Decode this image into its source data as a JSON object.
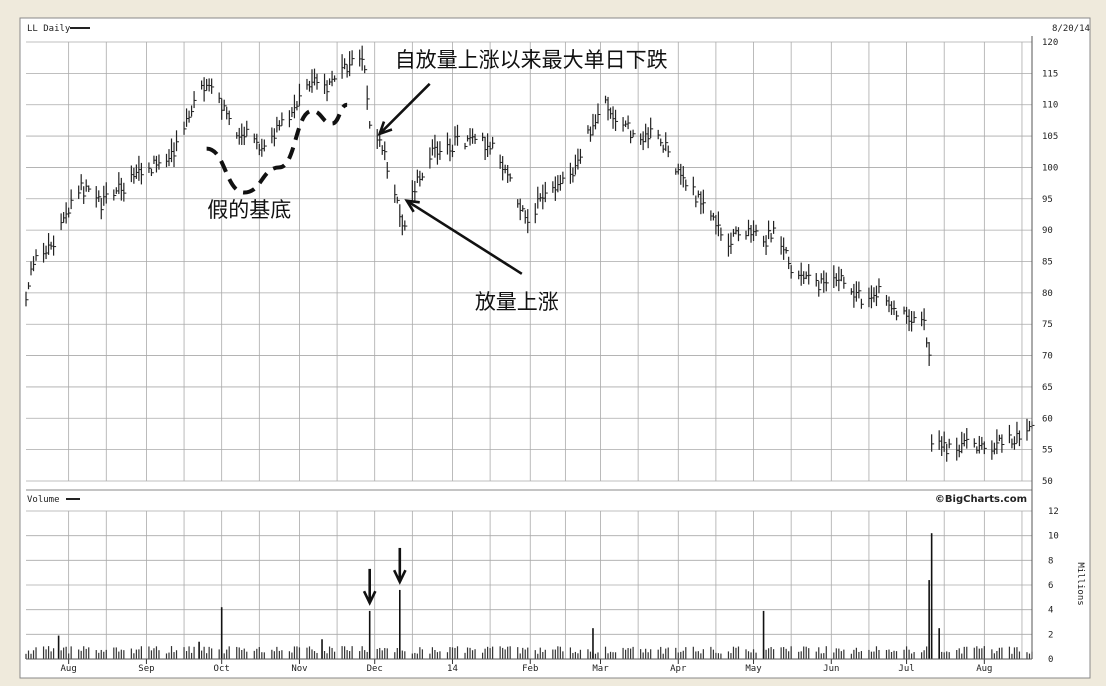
{
  "chart_data": [
    {
      "type": "bar",
      "subtype": "ohlc",
      "title": "LL Daily",
      "date_label": "8/20/14",
      "ylim": [
        50,
        120
      ],
      "y_ticks": [
        120,
        115,
        110,
        105,
        100,
        95,
        90,
        85,
        80,
        75,
        70,
        65,
        60,
        55,
        50
      ],
      "x_ticks": [
        "Aug",
        "Sep",
        "Oct",
        "Nov",
        "Dec",
        "14",
        "Feb",
        "Mar",
        "Apr",
        "May",
        "Jun",
        "Jul",
        "Aug"
      ],
      "grid": true,
      "price_path": [
        [
          "2013-07-15",
          80
        ],
        [
          "2013-07-19",
          86
        ],
        [
          "2013-07-26",
          88
        ],
        [
          "2013-07-31",
          93
        ],
        [
          "2013-08-05",
          97
        ],
        [
          "2013-08-14",
          94
        ],
        [
          "2013-08-23",
          97
        ],
        [
          "2013-08-30",
          99
        ],
        [
          "2013-09-06",
          101
        ],
        [
          "2013-09-13",
          103
        ],
        [
          "2013-09-18",
          108
        ],
        [
          "2013-09-24",
          113
        ],
        [
          "2013-09-30",
          111
        ],
        [
          "2013-10-04",
          107
        ],
        [
          "2013-10-11",
          105
        ],
        [
          "2013-10-17",
          103
        ],
        [
          "2013-10-23",
          106
        ],
        [
          "2013-10-31",
          110
        ],
        [
          "2013-11-06",
          114
        ],
        [
          "2013-11-13",
          113
        ],
        [
          "2013-11-20",
          116
        ],
        [
          "2013-11-25",
          118
        ],
        [
          "2013-11-27",
          116
        ],
        [
          "2013-11-29",
          106
        ],
        [
          "2013-12-04",
          103
        ],
        [
          "2013-12-09",
          96
        ],
        [
          "2013-12-12",
          90
        ],
        [
          "2013-12-17",
          97
        ],
        [
          "2013-12-24",
          102
        ],
        [
          "2014-01-03",
          104
        ],
        [
          "2014-01-10",
          105
        ],
        [
          "2014-01-17",
          103
        ],
        [
          "2014-01-24",
          98
        ],
        [
          "2014-01-31",
          91
        ],
        [
          "2014-02-05",
          95
        ],
        [
          "2014-02-12",
          97
        ],
        [
          "2014-02-19",
          100
        ],
        [
          "2014-02-25",
          106
        ],
        [
          "2014-03-03",
          110
        ],
        [
          "2014-03-10",
          107
        ],
        [
          "2014-03-17",
          104
        ],
        [
          "2014-03-24",
          106
        ],
        [
          "2014-03-31",
          99
        ],
        [
          "2014-04-07",
          96
        ],
        [
          "2014-04-14",
          92
        ],
        [
          "2014-04-21",
          88
        ],
        [
          "2014-04-28",
          90
        ],
        [
          "2014-05-05",
          88
        ],
        [
          "2014-05-09",
          90
        ],
        [
          "2014-05-16",
          84
        ],
        [
          "2014-05-23",
          82
        ],
        [
          "2014-05-30",
          81
        ],
        [
          "2014-06-06",
          82
        ],
        [
          "2014-06-13",
          79
        ],
        [
          "2014-06-20",
          80
        ],
        [
          "2014-06-27",
          77
        ],
        [
          "2014-07-03",
          76
        ],
        [
          "2014-07-08",
          76
        ],
        [
          "2014-07-10",
          70
        ],
        [
          "2014-07-11",
          56
        ],
        [
          "2014-07-18",
          55
        ],
        [
          "2014-07-25",
          56
        ],
        [
          "2014-08-01",
          55
        ],
        [
          "2014-08-08",
          56
        ],
        [
          "2014-08-15",
          57
        ],
        [
          "2014-08-20",
          58
        ]
      ],
      "annotations": [
        {
          "text": "自放量上涨以来最大单日下跌",
          "date": "2013-11-29",
          "value": 106
        },
        {
          "text": "假的基底",
          "date": "2013-10-10",
          "value": 98
        },
        {
          "text": "放量上涨",
          "date": "2013-12-13",
          "value": 95
        }
      ],
      "annotation_curve": [
        [
          "2013-09-25",
          103
        ],
        [
          "2013-10-10",
          96
        ],
        [
          "2013-10-24",
          100
        ],
        [
          "2013-11-06",
          109
        ],
        [
          "2013-11-14",
          107
        ],
        [
          "2013-11-20",
          110
        ]
      ]
    },
    {
      "type": "bar",
      "title": "Volume",
      "ylabel": "Millions",
      "ylim": [
        0,
        12
      ],
      "y_ticks": [
        12,
        10,
        8,
        6,
        4,
        2,
        0
      ],
      "baseline": 0.7,
      "spikes": [
        [
          "2013-07-28",
          1.9
        ],
        [
          "2013-09-22",
          1.4
        ],
        [
          "2013-10-01",
          4.2
        ],
        [
          "2013-11-10",
          1.6
        ],
        [
          "2013-11-29",
          3.9
        ],
        [
          "2013-12-11",
          5.6
        ],
        [
          "2014-02-26",
          2.5
        ],
        [
          "2014-05-05",
          3.9
        ],
        [
          "2014-07-10",
          6.4
        ],
        [
          "2014-07-11",
          10.2
        ],
        [
          "2014-07-14",
          2.5
        ]
      ],
      "annotations": [
        {
          "text": "arrow",
          "date": "2013-11-29"
        },
        {
          "text": "arrow",
          "date": "2013-12-11"
        }
      ]
    }
  ],
  "brand": "©BigCharts.com"
}
